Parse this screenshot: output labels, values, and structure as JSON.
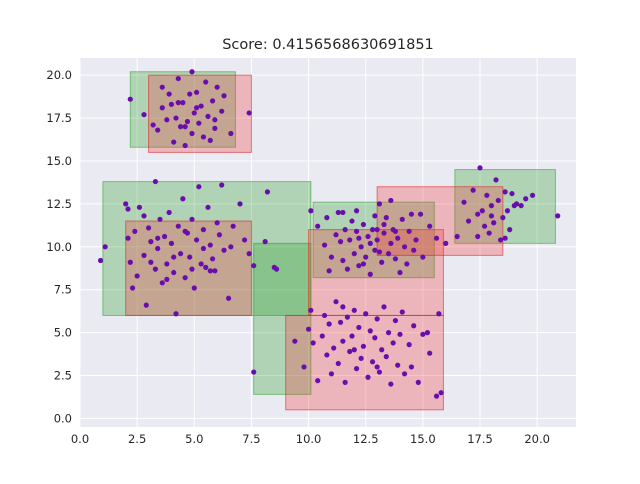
{
  "chart_data": {
    "type": "scatter",
    "title": "Score: 0.4156568630691851",
    "xlabel": "",
    "ylabel": "",
    "xlim": [
      0,
      21.7
    ],
    "ylim": [
      -0.5,
      21.0
    ],
    "xticks": [
      0.0,
      2.5,
      5.0,
      7.5,
      10.0,
      12.5,
      15.0,
      17.5,
      20.0
    ],
    "yticks": [
      0.0,
      2.5,
      5.0,
      7.5,
      10.0,
      12.5,
      15.0,
      17.5,
      20.0
    ],
    "grid": true,
    "colors": {
      "background": "#eaeaf2",
      "grid": "#ffffff",
      "green_fill": "#2ca02c",
      "green_edge": "#2ca02c",
      "red_fill": "#f03c3c",
      "red_edge": "#e0181c",
      "point": "#6a0dad"
    },
    "green_boxes": [
      {
        "x0": 2.2,
        "x1": 6.8,
        "y0": 15.8,
        "y1": 20.2
      },
      {
        "x0": 1.0,
        "x1": 10.1,
        "y0": 6.0,
        "y1": 13.8
      },
      {
        "x0": 7.6,
        "x1": 10.1,
        "y0": 1.4,
        "y1": 10.2
      },
      {
        "x0": 10.2,
        "x1": 15.5,
        "y0": 8.2,
        "y1": 12.6
      },
      {
        "x0": 16.4,
        "x1": 20.8,
        "y0": 10.2,
        "y1": 14.5
      }
    ],
    "red_boxes": [
      {
        "x0": 3.0,
        "x1": 7.5,
        "y0": 15.5,
        "y1": 20.0
      },
      {
        "x0": 2.0,
        "x1": 7.5,
        "y0": 6.0,
        "y1": 11.5
      },
      {
        "x0": 9.0,
        "x1": 15.9,
        "y0": 0.5,
        "y1": 6.0
      },
      {
        "x0": 10.0,
        "x1": 15.9,
        "y0": 6.0,
        "y1": 11.0
      },
      {
        "x0": 13.0,
        "x1": 18.5,
        "y0": 9.5,
        "y1": 13.5
      }
    ],
    "points": [
      [
        4.9,
        20.2
      ],
      [
        2.2,
        18.6
      ],
      [
        2.8,
        17.7
      ],
      [
        3.4,
        16.8
      ],
      [
        3.6,
        19.3
      ],
      [
        3.8,
        17.4
      ],
      [
        4.0,
        18.3
      ],
      [
        4.1,
        16.1
      ],
      [
        4.2,
        17.5
      ],
      [
        4.3,
        19.8
      ],
      [
        4.4,
        17.0
      ],
      [
        4.5,
        18.4
      ],
      [
        4.6,
        15.9
      ],
      [
        4.7,
        17.3
      ],
      [
        4.8,
        18.9
      ],
      [
        4.9,
        16.6
      ],
      [
        5.0,
        17.8
      ],
      [
        5.1,
        19.0
      ],
      [
        5.2,
        17.2
      ],
      [
        5.3,
        18.2
      ],
      [
        5.4,
        16.4
      ],
      [
        5.5,
        19.6
      ],
      [
        5.6,
        17.6
      ],
      [
        5.8,
        18.5
      ],
      [
        5.9,
        16.9
      ],
      [
        6.0,
        19.3
      ],
      [
        6.2,
        17.9
      ],
      [
        6.3,
        18.8
      ],
      [
        3.9,
        18.9
      ],
      [
        4.6,
        17.0
      ],
      [
        5.7,
        16.2
      ],
      [
        3.2,
        17.1
      ],
      [
        7.4,
        17.8
      ],
      [
        6.6,
        16.6
      ],
      [
        3.6,
        18.1
      ],
      [
        4.3,
        18.4
      ],
      [
        5.1,
        18.1
      ],
      [
        5.9,
        17.4
      ],
      [
        0.9,
        9.2
      ],
      [
        1.1,
        10.0
      ],
      [
        2.0,
        12.5
      ],
      [
        2.1,
        12.2
      ],
      [
        2.1,
        10.5
      ],
      [
        2.2,
        9.1
      ],
      [
        2.3,
        7.6
      ],
      [
        2.4,
        10.9
      ],
      [
        2.5,
        8.3
      ],
      [
        2.6,
        12.3
      ],
      [
        2.8,
        9.5
      ],
      [
        2.9,
        6.6
      ],
      [
        3.0,
        11.1
      ],
      [
        3.1,
        10.3
      ],
      [
        3.3,
        13.8
      ],
      [
        3.3,
        8.7
      ],
      [
        3.4,
        9.9
      ],
      [
        3.5,
        11.6
      ],
      [
        3.6,
        7.9
      ],
      [
        3.7,
        10.6
      ],
      [
        3.8,
        9.0
      ],
      [
        3.9,
        12.0
      ],
      [
        4.0,
        10.2
      ],
      [
        4.1,
        8.5
      ],
      [
        4.2,
        6.1
      ],
      [
        4.3,
        11.2
      ],
      [
        4.4,
        9.6
      ],
      [
        4.5,
        12.8
      ],
      [
        4.6,
        8.2
      ],
      [
        4.7,
        10.8
      ],
      [
        4.8,
        9.4
      ],
      [
        4.9,
        11.6
      ],
      [
        5.0,
        7.6
      ],
      [
        5.1,
        10.4
      ],
      [
        5.2,
        13.5
      ],
      [
        5.3,
        9.0
      ],
      [
        5.4,
        11.0
      ],
      [
        5.5,
        8.8
      ],
      [
        5.6,
        12.3
      ],
      [
        5.7,
        10.1
      ],
      [
        5.8,
        9.3
      ],
      [
        5.9,
        8.6
      ],
      [
        6.0,
        11.4
      ],
      [
        6.2,
        13.6
      ],
      [
        6.3,
        9.8
      ],
      [
        6.5,
        7.0
      ],
      [
        6.7,
        11.2
      ],
      [
        7.0,
        12.5
      ],
      [
        7.2,
        10.4
      ],
      [
        7.4,
        9.6
      ],
      [
        7.6,
        8.9
      ],
      [
        8.1,
        10.3
      ],
      [
        8.2,
        13.2
      ],
      [
        3.1,
        9.1
      ],
      [
        3.8,
        8.1
      ],
      [
        4.9,
        8.7
      ],
      [
        5.4,
        9.9
      ],
      [
        6.1,
        10.7
      ],
      [
        3.4,
        10.5
      ],
      [
        4.1,
        9.4
      ],
      [
        4.6,
        10.9
      ],
      [
        5.7,
        8.6
      ],
      [
        6.6,
        10.0
      ],
      [
        2.8,
        11.8
      ],
      [
        8.5,
        8.8
      ],
      [
        8.6,
        8.7
      ],
      [
        7.6,
        2.7
      ],
      [
        9.4,
        4.5
      ],
      [
        9.8,
        3.0
      ],
      [
        10.0,
        5.2
      ],
      [
        10.1,
        6.3
      ],
      [
        10.2,
        4.4
      ],
      [
        10.4,
        2.2
      ],
      [
        10.6,
        4.8
      ],
      [
        10.7,
        6.0
      ],
      [
        10.8,
        3.7
      ],
      [
        10.9,
        5.5
      ],
      [
        11.0,
        2.6
      ],
      [
        11.1,
        4.1
      ],
      [
        11.2,
        6.8
      ],
      [
        11.3,
        3.2
      ],
      [
        11.4,
        5.6
      ],
      [
        11.5,
        4.5
      ],
      [
        11.6,
        2.1
      ],
      [
        11.7,
        5.9
      ],
      [
        11.8,
        3.9
      ],
      [
        11.9,
        4.8
      ],
      [
        12.0,
        6.3
      ],
      [
        12.1,
        2.9
      ],
      [
        12.2,
        5.3
      ],
      [
        12.3,
        3.5
      ],
      [
        12.4,
        4.2
      ],
      [
        12.5,
        6.1
      ],
      [
        12.6,
        2.4
      ],
      [
        12.7,
        5.1
      ],
      [
        12.8,
        3.3
      ],
      [
        12.9,
        4.7
      ],
      [
        13.0,
        5.8
      ],
      [
        13.1,
        2.7
      ],
      [
        13.2,
        4.0
      ],
      [
        13.3,
        6.5
      ],
      [
        13.4,
        3.6
      ],
      [
        13.5,
        5.0
      ],
      [
        13.6,
        2.0
      ],
      [
        13.7,
        4.4
      ],
      [
        13.8,
        5.7
      ],
      [
        13.9,
        3.1
      ],
      [
        14.0,
        4.9
      ],
      [
        14.1,
        6.2
      ],
      [
        14.2,
        2.6
      ],
      [
        14.4,
        4.3
      ],
      [
        14.6,
        5.4
      ],
      [
        14.8,
        2.1
      ],
      [
        15.0,
        4.9
      ],
      [
        15.3,
        3.8
      ],
      [
        15.6,
        1.3
      ],
      [
        15.8,
        1.5
      ],
      [
        15.2,
        5.0
      ],
      [
        15.7,
        6.1
      ],
      [
        14.5,
        3.0
      ],
      [
        12.0,
        4.0
      ],
      [
        11.5,
        6.5
      ],
      [
        13.0,
        3.0
      ],
      [
        10.1,
        12.1
      ],
      [
        10.4,
        11.2
      ],
      [
        10.7,
        10.1
      ],
      [
        10.8,
        11.7
      ],
      [
        11.0,
        9.4
      ],
      [
        11.2,
        10.7
      ],
      [
        11.3,
        12.0
      ],
      [
        11.5,
        9.2
      ],
      [
        11.6,
        11.0
      ],
      [
        11.7,
        8.7
      ],
      [
        11.8,
        10.4
      ],
      [
        11.9,
        11.5
      ],
      [
        12.0,
        9.6
      ],
      [
        12.1,
        10.9
      ],
      [
        12.2,
        8.9
      ],
      [
        12.3,
        10.0
      ],
      [
        12.4,
        11.3
      ],
      [
        12.5,
        9.4
      ],
      [
        12.6,
        10.6
      ],
      [
        12.7,
        8.4
      ],
      [
        12.8,
        11.0
      ],
      [
        12.9,
        9.8
      ],
      [
        13.0,
        10.4
      ],
      [
        13.1,
        12.5
      ],
      [
        13.2,
        9.1
      ],
      [
        13.3,
        10.8
      ],
      [
        13.4,
        11.7
      ],
      [
        13.5,
        9.6
      ],
      [
        13.6,
        10.2
      ],
      [
        13.7,
        11.0
      ],
      [
        13.8,
        9.3
      ],
      [
        13.9,
        10.5
      ],
      [
        14.0,
        8.5
      ],
      [
        14.1,
        11.6
      ],
      [
        14.2,
        10.0
      ],
      [
        14.3,
        9.0
      ],
      [
        14.4,
        10.9
      ],
      [
        14.5,
        11.9
      ],
      [
        14.7,
        10.4
      ],
      [
        15.0,
        9.4
      ],
      [
        15.3,
        11.2
      ],
      [
        15.6,
        10.5
      ],
      [
        16.0,
        10.2
      ],
      [
        13.6,
        12.7
      ],
      [
        12.1,
        12.1
      ],
      [
        11.5,
        12.0
      ],
      [
        12.7,
        10.2
      ],
      [
        13.1,
        9.7
      ],
      [
        13.8,
        10.9
      ],
      [
        12.4,
        9.0
      ],
      [
        14.9,
        11.9
      ],
      [
        13.3,
        11.3
      ],
      [
        12.9,
        11.8
      ],
      [
        11.4,
        10.3
      ],
      [
        14.6,
        9.8
      ],
      [
        13.0,
        11.0
      ],
      [
        12.2,
        10.5
      ],
      [
        10.9,
        8.6
      ],
      [
        16.5,
        10.6
      ],
      [
        16.8,
        12.6
      ],
      [
        17.0,
        11.5
      ],
      [
        17.2,
        13.3
      ],
      [
        17.4,
        10.6
      ],
      [
        17.5,
        14.6
      ],
      [
        17.6,
        12.1
      ],
      [
        17.7,
        11.2
      ],
      [
        17.8,
        13.0
      ],
      [
        17.9,
        10.8
      ],
      [
        18.0,
        12.4
      ],
      [
        18.1,
        11.4
      ],
      [
        18.2,
        13.9
      ],
      [
        18.3,
        12.7
      ],
      [
        18.4,
        10.4
      ],
      [
        18.5,
        11.7
      ],
      [
        18.6,
        13.2
      ],
      [
        18.7,
        12.1
      ],
      [
        18.8,
        11.0
      ],
      [
        18.9,
        13.1
      ],
      [
        19.0,
        12.4
      ],
      [
        19.1,
        12.5
      ],
      [
        19.3,
        12.4
      ],
      [
        19.8,
        13.0
      ],
      [
        20.9,
        11.8
      ],
      [
        18.6,
        10.5
      ],
      [
        17.4,
        11.9
      ],
      [
        18.0,
        11.8
      ],
      [
        19.5,
        12.8
      ]
    ]
  }
}
